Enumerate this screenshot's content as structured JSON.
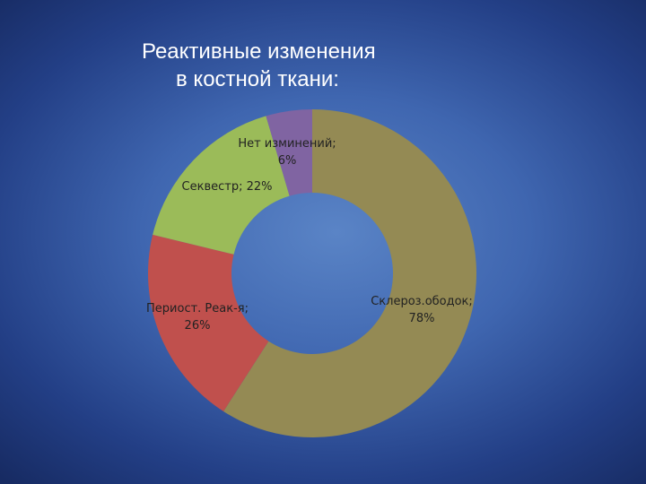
{
  "title_lines": [
    "Реактивные изменения",
    "в костной ткани:"
  ],
  "chart_data": {
    "type": "pie",
    "title": "Реактивные изменения в костной ткани:",
    "style": "donut",
    "slices": [
      {
        "name": "Склероз.ободок",
        "label": "Склероз.ободок;",
        "value_label": "78%",
        "value": 78,
        "color": "#948a54"
      },
      {
        "name": "Периост. Реак-я",
        "label": "Периост. Реак-я;",
        "value_label": "26%",
        "value": 26,
        "color": "#c0504d"
      },
      {
        "name": "Секвестр",
        "label": "Секвестр; 22%",
        "value_label": "",
        "value": 22,
        "color": "#9bbb59"
      },
      {
        "name": "Нет изминений",
        "label": "Нет изминений;",
        "value_label": "6%",
        "value": 6,
        "color": "#8064a2"
      }
    ]
  }
}
